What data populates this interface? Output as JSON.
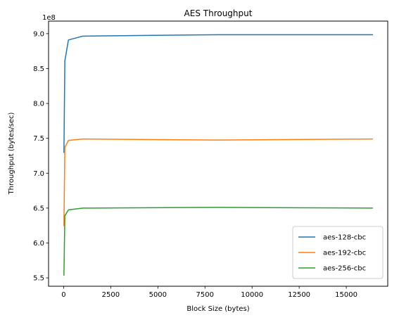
{
  "chart_data": {
    "type": "line",
    "title": "AES Throughput",
    "xlabel": "Block Size (bytes)",
    "ylabel": "Throughput (bytes/sec)",
    "y_offset_label": "1e8",
    "xlim": [
      -800,
      17200
    ],
    "ylim": [
      538000000.0,
      918000000.0
    ],
    "xticks": [
      0,
      2500,
      5000,
      7500,
      10000,
      12500,
      15000
    ],
    "xtick_labels": [
      "0",
      "2500",
      "5000",
      "7500",
      "10000",
      "12500",
      "15000"
    ],
    "yticks": [
      550000000.0,
      600000000.0,
      650000000.0,
      700000000.0,
      750000000.0,
      800000000.0,
      850000000.0,
      900000000.0
    ],
    "ytick_labels": [
      "5.5",
      "6.0",
      "6.5",
      "7.0",
      "7.5",
      "8.0",
      "8.5",
      "9.0"
    ],
    "legend_position": "lower-right",
    "grid": false,
    "x": [
      16,
      64,
      256,
      1024,
      8192,
      16384
    ],
    "series": [
      {
        "name": "aes-128-cbc",
        "color": "#1f77b4",
        "values": [
          730000000.0,
          861000000.0,
          891000000.0,
          896500000.0,
          898500000.0,
          898500000.0
        ]
      },
      {
        "name": "aes-192-cbc",
        "color": "#ff7f0e",
        "values": [
          625000000.0,
          737000000.0,
          747000000.0,
          749000000.0,
          747500000.0,
          749000000.0
        ]
      },
      {
        "name": "aes-256-cbc",
        "color": "#2ca02c",
        "values": [
          554000000.0,
          639000000.0,
          647500000.0,
          650000000.0,
          651000000.0,
          650000000.0
        ]
      }
    ]
  }
}
